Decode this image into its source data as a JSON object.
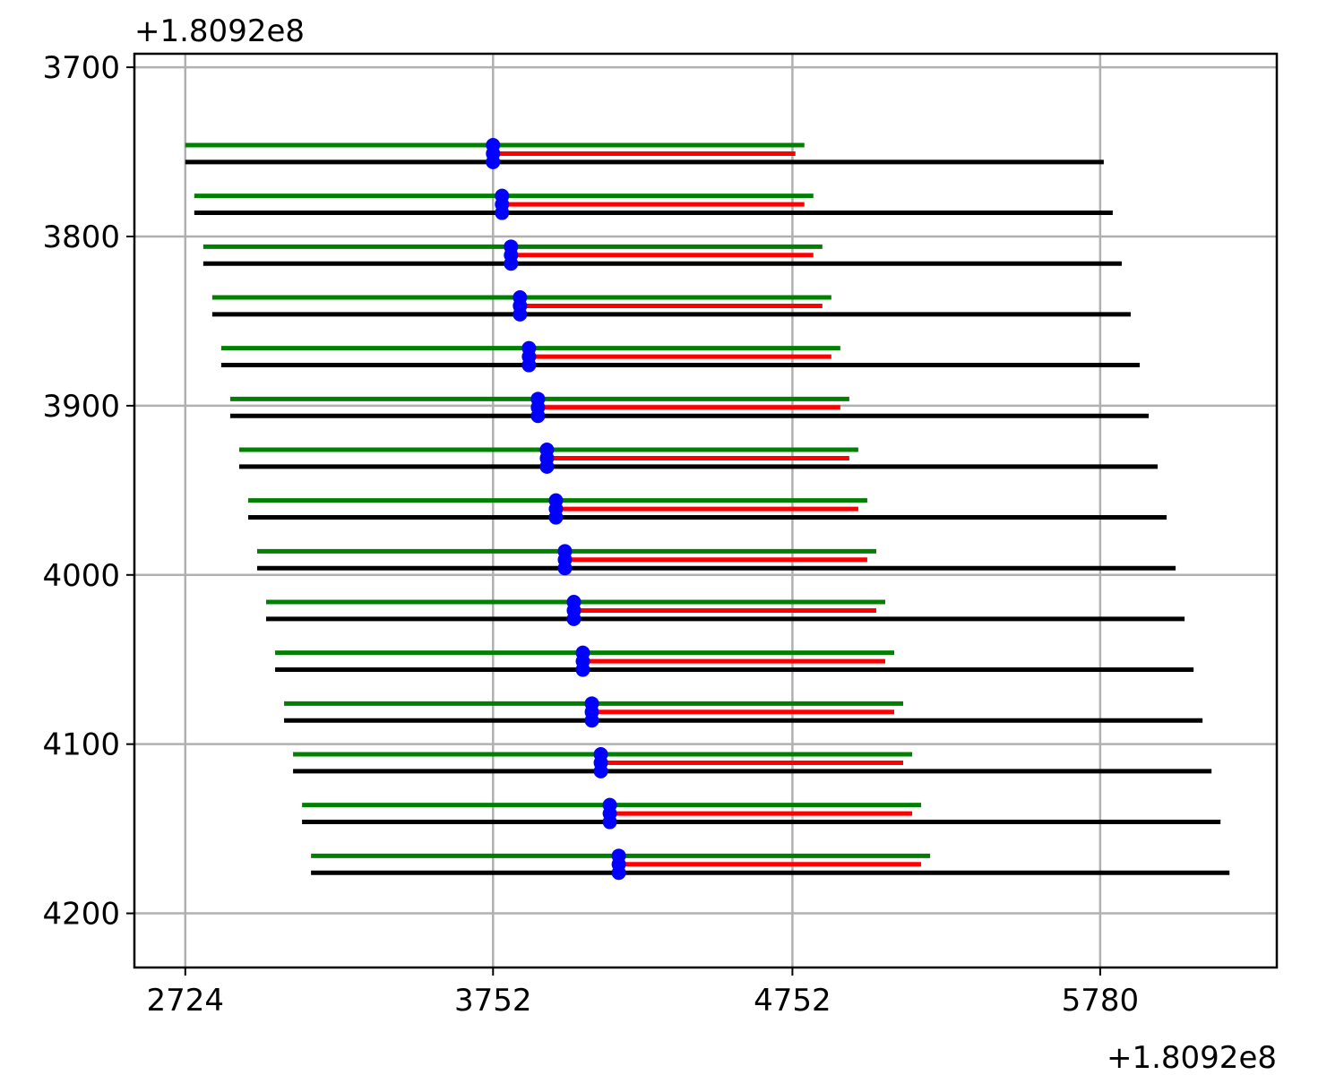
{
  "chart_data": {
    "type": "line",
    "title": "",
    "xlabel": "",
    "ylabel": "",
    "x_offset_text": "+1.8092e8",
    "y_offset_text": "+1.8092e8",
    "xlim": [
      2554,
      6370
    ],
    "ylim": [
      4232,
      3692
    ],
    "y_inverted": true,
    "grid": true,
    "x_ticks": [
      {
        "value": 2724,
        "label": "2724"
      },
      {
        "value": 3752,
        "label": "3752"
      },
      {
        "value": 4752,
        "label": "4752"
      },
      {
        "value": 5780,
        "label": "5780"
      }
    ],
    "y_ticks": [
      {
        "value": 3700,
        "label": "3700"
      },
      {
        "value": 3800,
        "label": "3800"
      },
      {
        "value": 3900,
        "label": "3900"
      },
      {
        "value": 4000,
        "label": "4000"
      },
      {
        "value": 4100,
        "label": "4100"
      },
      {
        "value": 4200,
        "label": "4200"
      }
    ],
    "series_colors": {
      "green": "#008000",
      "red": "#ff0000",
      "black": "#000000",
      "points": "#0000ff"
    },
    "rows": [
      {
        "green_y": 3746,
        "red_y": 3751,
        "black_y": 3756,
        "green_x": [
          2724,
          4792
        ],
        "red_x": [
          3752,
          4762
        ],
        "black_x": [
          2724,
          5792
        ],
        "point_x": 3752,
        "point_y": [
          3746,
          3751,
          3756
        ]
      },
      {
        "green_y": 3776,
        "red_y": 3781,
        "black_y": 3786,
        "green_x": [
          2754,
          4822
        ],
        "red_x": [
          3782,
          4792
        ],
        "black_x": [
          2754,
          5822
        ],
        "point_x": 3782,
        "point_y": [
          3776,
          3781,
          3786
        ]
      },
      {
        "green_y": 3806,
        "red_y": 3811,
        "black_y": 3816,
        "green_x": [
          2784,
          4852
        ],
        "red_x": [
          3812,
          4822
        ],
        "black_x": [
          2784,
          5852
        ],
        "point_x": 3812,
        "point_y": [
          3806,
          3811,
          3816
        ]
      },
      {
        "green_y": 3836,
        "red_y": 3841,
        "black_y": 3846,
        "green_x": [
          2814,
          4882
        ],
        "red_x": [
          3842,
          4852
        ],
        "black_x": [
          2814,
          5882
        ],
        "point_x": 3842,
        "point_y": [
          3836,
          3841,
          3846
        ]
      },
      {
        "green_y": 3866,
        "red_y": 3871,
        "black_y": 3876,
        "green_x": [
          2844,
          4912
        ],
        "red_x": [
          3872,
          4882
        ],
        "black_x": [
          2844,
          5912
        ],
        "point_x": 3872,
        "point_y": [
          3866,
          3871,
          3876
        ]
      },
      {
        "green_y": 3896,
        "red_y": 3901,
        "black_y": 3906,
        "green_x": [
          2874,
          4942
        ],
        "red_x": [
          3902,
          4912
        ],
        "black_x": [
          2874,
          5942
        ],
        "point_x": 3902,
        "point_y": [
          3896,
          3901,
          3906
        ]
      },
      {
        "green_y": 3926,
        "red_y": 3931,
        "black_y": 3936,
        "green_x": [
          2904,
          4972
        ],
        "red_x": [
          3932,
          4942
        ],
        "black_x": [
          2904,
          5972
        ],
        "point_x": 3932,
        "point_y": [
          3926,
          3931,
          3936
        ]
      },
      {
        "green_y": 3956,
        "red_y": 3961,
        "black_y": 3966,
        "green_x": [
          2934,
          5002
        ],
        "red_x": [
          3962,
          4972
        ],
        "black_x": [
          2934,
          6002
        ],
        "point_x": 3962,
        "point_y": [
          3956,
          3961,
          3966
        ]
      },
      {
        "green_y": 3986,
        "red_y": 3991,
        "black_y": 3996,
        "green_x": [
          2964,
          5032
        ],
        "red_x": [
          3992,
          5002
        ],
        "black_x": [
          2964,
          6032
        ],
        "point_x": 3992,
        "point_y": [
          3986,
          3991,
          3996
        ]
      },
      {
        "green_y": 4016,
        "red_y": 4021,
        "black_y": 4026,
        "green_x": [
          2994,
          5062
        ],
        "red_x": [
          4022,
          5032
        ],
        "black_x": [
          2994,
          6062
        ],
        "point_x": 4022,
        "point_y": [
          4016,
          4021,
          4026
        ]
      },
      {
        "green_y": 4046,
        "red_y": 4051,
        "black_y": 4056,
        "green_x": [
          3024,
          5092
        ],
        "red_x": [
          4052,
          5062
        ],
        "black_x": [
          3024,
          6092
        ],
        "point_x": 4052,
        "point_y": [
          4046,
          4051,
          4056
        ]
      },
      {
        "green_y": 4076,
        "red_y": 4081,
        "black_y": 4086,
        "green_x": [
          3054,
          5122
        ],
        "red_x": [
          4082,
          5092
        ],
        "black_x": [
          3054,
          6122
        ],
        "point_x": 4082,
        "point_y": [
          4076,
          4081,
          4086
        ]
      },
      {
        "green_y": 4106,
        "red_y": 4111,
        "black_y": 4116,
        "green_x": [
          3084,
          5152
        ],
        "red_x": [
          4112,
          5122
        ],
        "black_x": [
          3084,
          6152
        ],
        "point_x": 4112,
        "point_y": [
          4106,
          4111,
          4116
        ]
      },
      {
        "green_y": 4136,
        "red_y": 4141,
        "black_y": 4146,
        "green_x": [
          3114,
          5182
        ],
        "red_x": [
          4142,
          5152
        ],
        "black_x": [
          3114,
          6182
        ],
        "point_x": 4142,
        "point_y": [
          4136,
          4141,
          4146
        ]
      },
      {
        "green_y": 4166,
        "red_y": 4171,
        "black_y": 4176,
        "green_x": [
          3144,
          5212
        ],
        "red_x": [
          4172,
          5182
        ],
        "black_x": [
          3144,
          6212
        ],
        "point_x": 4172,
        "point_y": [
          4166,
          4171,
          4176
        ]
      }
    ]
  }
}
